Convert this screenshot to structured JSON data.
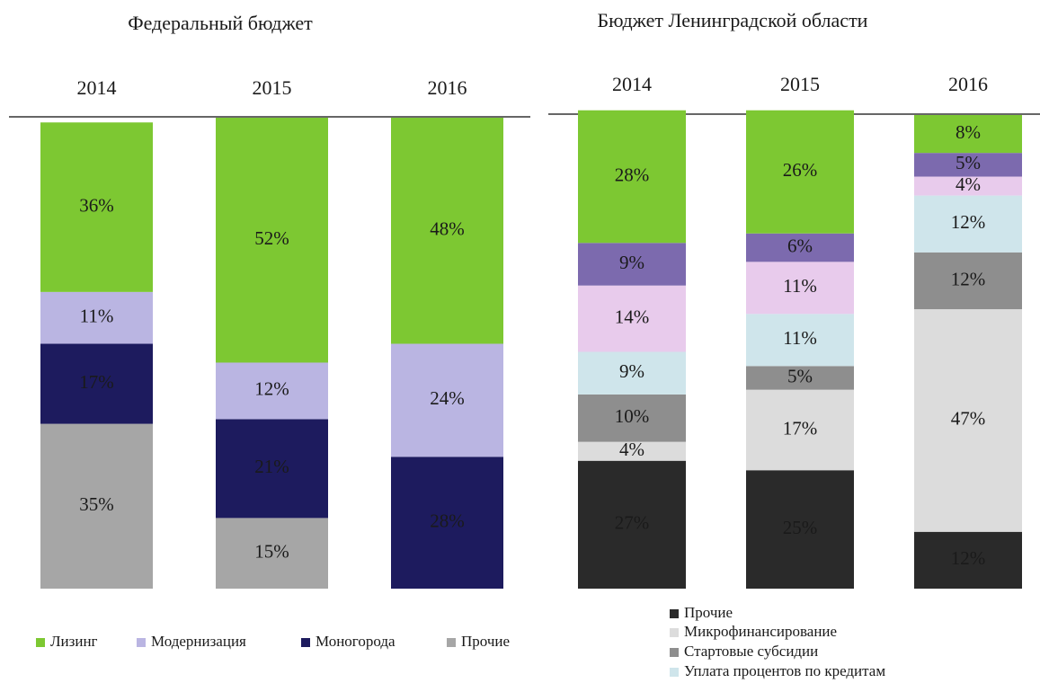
{
  "chart_data": [
    {
      "type": "bar",
      "stacked": true,
      "title": "Федеральный бюджет",
      "categories": [
        "2014",
        "2015",
        "2016"
      ],
      "ylim": [
        0,
        100
      ],
      "legend": "bottom",
      "series": [
        {
          "name": "Прочие",
          "color": "#a6a6a6",
          "values": [
            35,
            15,
            null
          ],
          "value_labels": [
            "35%",
            "15%",
            null
          ]
        },
        {
          "name": "Моногорода",
          "color": "#1d1b5e",
          "values": [
            17,
            21,
            28
          ],
          "value_labels": [
            "17%",
            "21%",
            "28%"
          ]
        },
        {
          "name": "Модернизация",
          "color": "#bab5e2",
          "values": [
            11,
            12,
            24
          ],
          "value_labels": [
            "11%",
            "12%",
            "24%"
          ]
        },
        {
          "name": "Лизинг",
          "color": "#7dc832",
          "values": [
            36,
            52,
            48
          ],
          "value_labels": [
            "36%",
            "52%",
            "48%"
          ]
        }
      ]
    },
    {
      "type": "bar",
      "stacked": true,
      "title": "Бюджет Ленинградской области",
      "categories": [
        "2014",
        "2015",
        "2016"
      ],
      "ylim": [
        0,
        100
      ],
      "legend": "bottom",
      "series": [
        {
          "name": "Прочие",
          "color": "#2a2a2a",
          "values": [
            27,
            25,
            12
          ],
          "value_labels": [
            "27%",
            "25%",
            "12%"
          ]
        },
        {
          "name": "Микрофинансирование",
          "color": "#dcdcdc",
          "values": [
            4,
            17,
            47
          ],
          "value_labels": [
            "4%",
            "17%",
            "47%"
          ]
        },
        {
          "name": "Стартовые субсидии",
          "color": "#8e8e8e",
          "values": [
            10,
            5,
            12
          ],
          "value_labels": [
            "10%",
            "5%",
            "12%"
          ]
        },
        {
          "name": "Уплата процентов по кредитам",
          "color": "#cfe5eb",
          "values": [
            9,
            11,
            12
          ],
          "value_labels": [
            "9%",
            "11%",
            "12%"
          ]
        },
        {
          "color": "#e8cbec",
          "values": [
            14,
            11,
            4
          ],
          "value_labels": [
            "14%",
            "11%",
            "4%"
          ]
        },
        {
          "color": "#7c6aae",
          "values": [
            9,
            6,
            5
          ],
          "value_labels": [
            "9%",
            "6%",
            "5%"
          ]
        },
        {
          "color": "#7dc832",
          "values": [
            28,
            26,
            8
          ],
          "value_labels": [
            "28%",
            "26%",
            "8%"
          ]
        }
      ]
    }
  ]
}
